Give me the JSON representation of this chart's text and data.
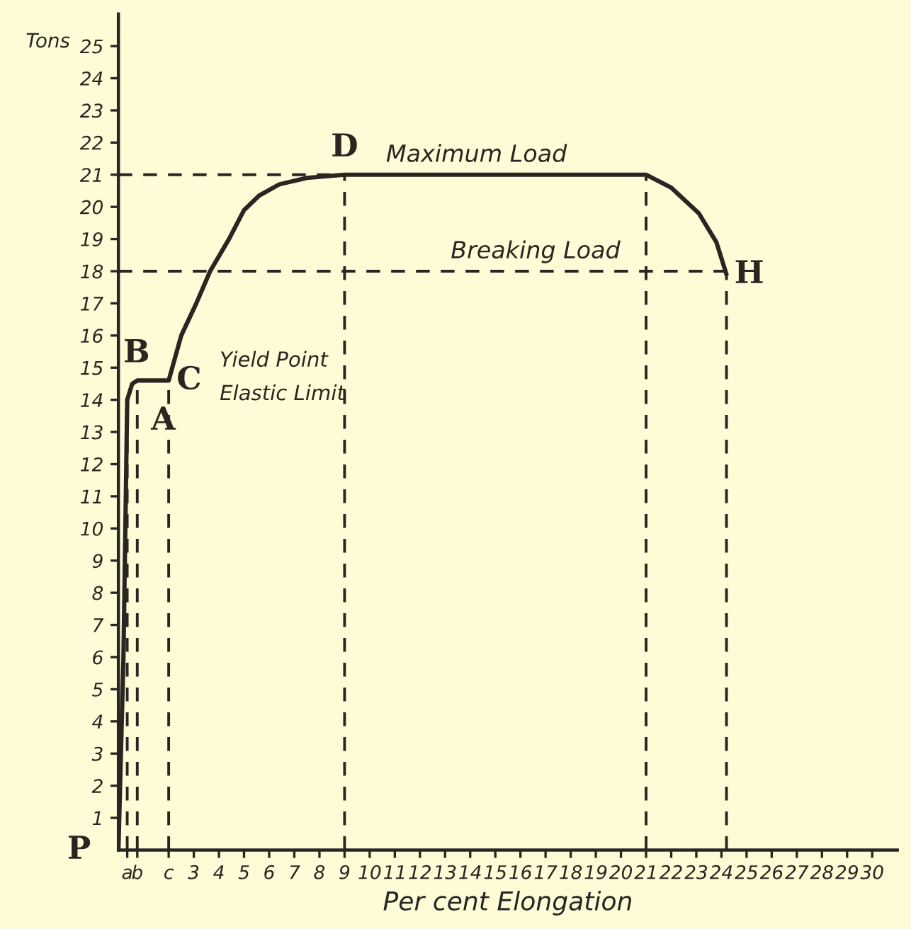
{
  "chart_data": {
    "type": "line",
    "xlabel": "Per cent Elongation",
    "ylabel": "Tons",
    "x": [
      0,
      0.2,
      0.35,
      0.55,
      0.75,
      2,
      2.5,
      3.1,
      3.65,
      4.4,
      5,
      5.6,
      6.4,
      7.5,
      9,
      21,
      22,
      23.1,
      23.8,
      24.2
    ],
    "series": [
      {
        "color": "#2b2522",
        "values": [
          0,
          6,
          14,
          14.5,
          14.6,
          14.6,
          16,
          17,
          18,
          19,
          19.9,
          20.35,
          20.7,
          20.9,
          21,
          21,
          20.6,
          19.8,
          18.9,
          17.9
        ]
      }
    ],
    "xlim": [
      0,
      31
    ],
    "ylim": [
      0,
      26
    ],
    "xticks": [
      {
        "value": 0.35,
        "label": "a"
      },
      {
        "value": 0.75,
        "label": "b"
      },
      {
        "value": 2,
        "label": "c"
      },
      3,
      4,
      5,
      6,
      7,
      8,
      9,
      10,
      11,
      12,
      13,
      14,
      15,
      16,
      17,
      18,
      19,
      20,
      21,
      22,
      23,
      24,
      25,
      26,
      27,
      28,
      29,
      30
    ],
    "yticks": [
      1,
      2,
      3,
      4,
      5,
      6,
      7,
      8,
      9,
      10,
      11,
      12,
      13,
      14,
      15,
      16,
      17,
      18,
      19,
      20,
      21,
      22,
      23,
      24,
      25
    ],
    "ref_lines": [
      {
        "axis": "y",
        "value": 21,
        "label": "Maximum Load",
        "line_style": "dashed",
        "color": "#2b2522"
      },
      {
        "axis": "y",
        "value": 18,
        "label": "Breaking Load",
        "line_style": "dashed",
        "color": "#2b2522"
      },
      {
        "axis": "x",
        "value": 0.35,
        "label": null,
        "line_style": "dashed",
        "color": "#2b2522"
      },
      {
        "axis": "x",
        "value": 0.75,
        "label": null,
        "line_style": "dashed",
        "color": "#2b2522"
      },
      {
        "axis": "x",
        "value": 2,
        "label": null,
        "line_style": "dashed",
        "color": "#2b2522"
      },
      {
        "axis": "x",
        "value": 9,
        "label": null,
        "line_style": "dashed",
        "color": "#2b2522"
      },
      {
        "axis": "x",
        "value": 21,
        "label": null,
        "line_style": "dashed",
        "color": "#2b2522"
      },
      {
        "axis": "x",
        "value": 24.2,
        "label": null,
        "line_style": "dashed",
        "color": "#2b2522"
      }
    ],
    "annotations": [
      {
        "text": "P",
        "x": 0,
        "y": 0
      },
      {
        "text": "A",
        "x": 0.75,
        "y": 14
      },
      {
        "text": "B",
        "x": 0.35,
        "y": 14.6
      },
      {
        "text": "C",
        "x": 2,
        "y": 14.6
      },
      {
        "text": "D",
        "x": 9,
        "y": 21
      },
      {
        "text": "H",
        "x": 24.2,
        "y": 17.9
      },
      "Yield Point",
      "Elastic Limit"
    ],
    "grid": false,
    "legend": false,
    "marker": "none",
    "line_style": "solid"
  }
}
